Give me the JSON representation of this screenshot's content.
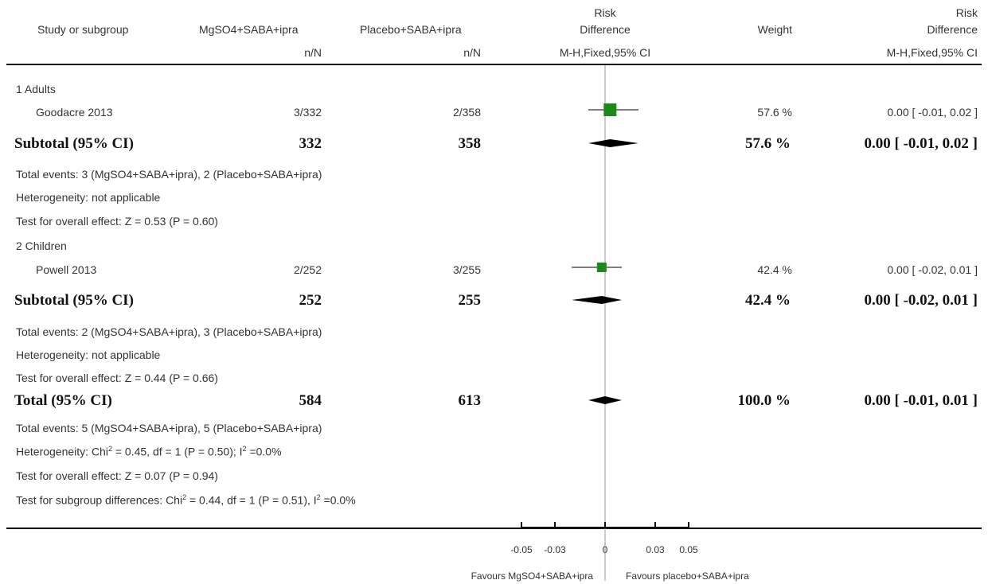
{
  "header": {
    "study": "Study or subgroup",
    "treat": "MgSO4+SABA+ipra",
    "control": "Placebo+SABA+ipra",
    "rd_line1": "Risk",
    "rd_line2": "Difference",
    "weight": "Weight",
    "rd2_line1": "Risk",
    "rd2_line2": "Difference",
    "nN_treat": "n/N",
    "nN_control": "n/N",
    "method": "M-H,Fixed,95% CI",
    "method2": "M-H,Fixed,95% CI"
  },
  "groups": [
    {
      "label": "1 Adults",
      "study": {
        "name": "Goodacre 2013",
        "treat": "3/332",
        "control": "2/358",
        "weight": "57.6 %",
        "ci": "0.00 [ -0.01, 0.02 ]"
      },
      "subtotal": {
        "label": "Subtotal (95% CI)",
        "treat": "332",
        "control": "358",
        "weight": "57.6 %",
        "ci": "0.00 [ -0.01, 0.02 ]"
      },
      "events": "Total events: 3 (MgSO4+SABA+ipra), 2 (Placebo+SABA+ipra)",
      "heterogeneity": "Heterogeneity: not applicable",
      "overall": "Test for overall effect: Z = 0.53 (P = 0.60)"
    },
    {
      "label": "2 Children",
      "study": {
        "name": "Powell 2013",
        "treat": "2/252",
        "control": "3/255",
        "weight": "42.4 %",
        "ci": "0.00 [ -0.02, 0.01 ]"
      },
      "subtotal": {
        "label": "Subtotal (95% CI)",
        "treat": "252",
        "control": "255",
        "weight": "42.4 %",
        "ci": "0.00 [ -0.02, 0.01 ]"
      },
      "events": "Total events: 2 (MgSO4+SABA+ipra), 3 (Placebo+SABA+ipra)",
      "heterogeneity": "Heterogeneity: not applicable",
      "overall": "Test for overall effect: Z = 0.44 (P = 0.66)"
    }
  ],
  "total": {
    "label": "Total (95% CI)",
    "treat": "584",
    "control": "613",
    "weight": "100.0 %",
    "ci": "0.00 [ -0.01, 0.01 ]",
    "events": "Total events: 5 (MgSO4+SABA+ipra), 5 (Placebo+SABA+ipra)",
    "het_a": "Heterogeneity: Chi",
    "het_b": " = 0.45, df = 1 (P = 0.50); I",
    "het_c": " =0.0%",
    "overall": "Test for overall effect: Z = 0.07 (P = 0.94)",
    "sub_a": "Test for subgroup differences: Chi",
    "sub_b": " = 0.44, df = 1 (P = 0.51), I",
    "sub_c": " =0.0%",
    "sup": "2"
  },
  "footer": {
    "favours_left": "Favours MgSO4+SABA+ipra",
    "favours_right": "Favours placebo+SABA+ipra"
  },
  "chart_data": {
    "type": "forest",
    "xlim": [
      -0.05,
      0.05
    ],
    "ticks": [
      -0.05,
      -0.03,
      0,
      0.03,
      0.05
    ],
    "tick_labels": [
      "-0.05",
      "-0.03",
      "0",
      "0.03",
      "0.05"
    ],
    "colors": {
      "study_box": "#1a8a1a",
      "diamond": "#000000"
    },
    "studies": [
      {
        "name": "Goodacre 2013",
        "estimate": 0.003,
        "lower": -0.01,
        "upper": 0.02,
        "weight": 57.6
      },
      {
        "name": "Powell 2013",
        "estimate": -0.002,
        "lower": -0.02,
        "upper": 0.01,
        "weight": 42.4
      }
    ],
    "diamonds": [
      {
        "name": "Subtotal Adults",
        "estimate": 0.003,
        "lower": -0.01,
        "upper": 0.02
      },
      {
        "name": "Subtotal Children",
        "estimate": -0.002,
        "lower": -0.02,
        "upper": 0.01
      },
      {
        "name": "Total",
        "estimate": 0.0,
        "lower": -0.01,
        "upper": 0.01
      }
    ]
  }
}
